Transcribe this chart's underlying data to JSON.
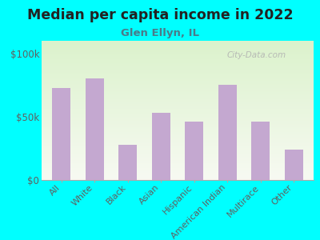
{
  "title": "Median per capita income in 2022",
  "subtitle": "Glen Ellyn, IL",
  "categories": [
    "All",
    "White",
    "Black",
    "Asian",
    "Hispanic",
    "American Indian",
    "Multirace",
    "Other"
  ],
  "values": [
    73000,
    80000,
    28000,
    53000,
    46000,
    75000,
    46000,
    24000
  ],
  "bar_color": "#c4a8d0",
  "background_outer": "#00ffff",
  "background_inner_top": "#ddf0d0",
  "background_inner_bottom": "#f8f8f2",
  "title_color": "#222222",
  "subtitle_color": "#4a7a8a",
  "tick_label_color": "#606060",
  "watermark": "City-Data.com",
  "ylim": [
    0,
    110000
  ],
  "yticks": [
    0,
    50000,
    100000
  ],
  "ytick_labels": [
    "$0",
    "$50k",
    "$100k"
  ]
}
